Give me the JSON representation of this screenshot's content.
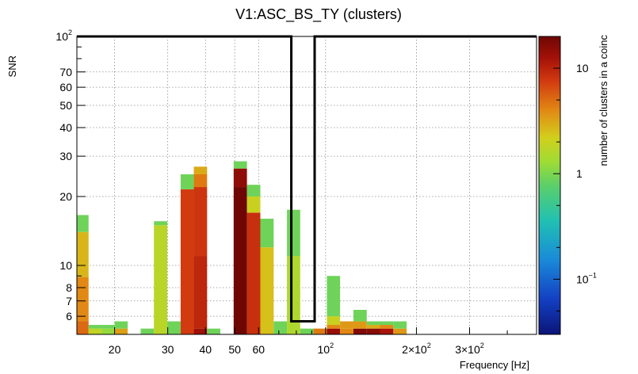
{
  "chart_data": {
    "type": "heatmap",
    "title": "V1:ASC_BS_TY (clusters)",
    "xlabel": "Frequency [Hz]",
    "ylabel": "SNR",
    "zlabel": "number of clusters in a coinc",
    "x_scale": "log",
    "y_scale": "log",
    "z_scale": "log",
    "xlim": [
      15.0,
      500.0
    ],
    "ylim": [
      5.0,
      100.0
    ],
    "zlim": [
      0.03,
      20.0
    ],
    "x_ticks": [
      {
        "value": 20,
        "label": "20"
      },
      {
        "value": 30,
        "label": "30"
      },
      {
        "value": 40,
        "label": "40"
      },
      {
        "value": 50,
        "label": "50"
      },
      {
        "value": 60,
        "label": "60"
      },
      {
        "value": 100,
        "label": "10",
        "exp": "2"
      },
      {
        "value": 200,
        "label": "2×10",
        "exp": "2"
      },
      {
        "value": 300,
        "label": "3×10",
        "exp": "2"
      }
    ],
    "y_ticks": [
      {
        "value": 6,
        "label": "6"
      },
      {
        "value": 7,
        "label": "7"
      },
      {
        "value": 8,
        "label": "8"
      },
      {
        "value": 10,
        "label": "10"
      },
      {
        "value": 20,
        "label": "20"
      },
      {
        "value": 30,
        "label": "30"
      },
      {
        "value": 40,
        "label": "40"
      },
      {
        "value": 50,
        "label": "50"
      },
      {
        "value": 60,
        "label": "60"
      },
      {
        "value": 70,
        "label": "70"
      },
      {
        "value": 100,
        "label": "10",
        "exp": "2"
      }
    ],
    "z_ticks": [
      {
        "value": 0.1,
        "label": "10",
        "exp": "−1"
      },
      {
        "value": 1,
        "label": "1"
      },
      {
        "value": 10,
        "label": "10"
      }
    ],
    "selection_window": {
      "f_min": 77.0,
      "f_max": 92.0,
      "snr_min": 5.7,
      "snr_max": 100.0
    },
    "columns": [
      {
        "f": [
          15.0,
          16.4
        ],
        "stack": [
          [
            5.0,
            5.7,
            5.2
          ],
          [
            5.7,
            8.9,
            4.0
          ],
          [
            8.9,
            14.0,
            2.7
          ],
          [
            14.0,
            16.6,
            0.9
          ]
        ]
      },
      {
        "f": [
          16.4,
          18.1
        ],
        "stack": [
          [
            5.0,
            5.3,
            1.8
          ],
          [
            5.3,
            5.5,
            0.9
          ]
        ]
      },
      {
        "f": [
          18.1,
          20.0
        ],
        "stack": [
          [
            5.0,
            5.3,
            1.2
          ],
          [
            5.3,
            5.5,
            0.9
          ]
        ]
      },
      {
        "f": [
          20.0,
          22.1
        ],
        "stack": [
          [
            5.0,
            5.3,
            3.3
          ],
          [
            5.3,
            5.7,
            0.9
          ]
        ]
      },
      {
        "f": [
          24.4,
          27.0
        ],
        "stack": [
          [
            5.0,
            5.3,
            0.9
          ]
        ]
      },
      {
        "f": [
          27.0,
          29.9
        ],
        "stack": [
          [
            5.0,
            15.0,
            1.7
          ],
          [
            15.0,
            15.6,
            0.9
          ]
        ]
      },
      {
        "f": [
          29.9,
          33.1
        ],
        "stack": [
          [
            5.0,
            5.7,
            0.9
          ]
        ]
      },
      {
        "f": [
          33.1,
          36.6
        ],
        "stack": [
          [
            5.0,
            21.5,
            7.5
          ],
          [
            21.5,
            25.0,
            0.9
          ]
        ]
      },
      {
        "f": [
          36.6,
          40.5
        ],
        "stack": [
          [
            5.0,
            5.3,
            13.0
          ],
          [
            5.3,
            11.0,
            9.5
          ],
          [
            11.0,
            22.0,
            8.0
          ],
          [
            22.0,
            25.0,
            4.5
          ],
          [
            25.0,
            27.0,
            3.0
          ]
        ]
      },
      {
        "f": [
          40.5,
          44.8
        ],
        "stack": [
          [
            5.0,
            5.3,
            0.9
          ]
        ]
      },
      {
        "f": [
          49.6,
          54.9
        ],
        "stack": [
          [
            5.0,
            22.0,
            20.0
          ],
          [
            22.0,
            26.5,
            15.0
          ],
          [
            26.5,
            28.5,
            0.9
          ]
        ]
      },
      {
        "f": [
          54.9,
          60.8
        ],
        "stack": [
          [
            5.0,
            17.0,
            8.5
          ],
          [
            17.0,
            20.0,
            2.0
          ],
          [
            20.0,
            22.5,
            0.9
          ]
        ]
      },
      {
        "f": [
          60.8,
          67.3
        ],
        "stack": [
          [
            5.0,
            12.0,
            2.5
          ],
          [
            12.0,
            16.0,
            0.9
          ]
        ]
      },
      {
        "f": [
          67.3,
          74.5
        ],
        "stack": [
          [
            5.0,
            5.7,
            0.9
          ]
        ]
      },
      {
        "f": [
          74.5,
          82.4
        ],
        "stack": [
          [
            5.0,
            11.0,
            1.5
          ],
          [
            11.0,
            17.5,
            0.9
          ]
        ]
      },
      {
        "f": [
          82.4,
          91.2
        ],
        "stack": [
          [
            5.0,
            5.3,
            0.9
          ]
        ]
      },
      {
        "f": [
          91.2,
          101.0
        ],
        "stack": [
          [
            5.0,
            5.3,
            4.5
          ]
        ]
      },
      {
        "f": [
          101.0,
          111.7
        ],
        "stack": [
          [
            5.0,
            5.3,
            14.0
          ],
          [
            5.3,
            5.5,
            4.0
          ],
          [
            5.5,
            6.0,
            2.0
          ],
          [
            6.0,
            9.0,
            0.9
          ]
        ]
      },
      {
        "f": [
          111.7,
          123.7
        ],
        "stack": [
          [
            5.0,
            5.3,
            4.0
          ],
          [
            5.3,
            5.7,
            3.5
          ]
        ]
      },
      {
        "f": [
          123.7,
          136.9
        ],
        "stack": [
          [
            5.0,
            5.3,
            17.0
          ],
          [
            5.3,
            5.7,
            3.5
          ],
          [
            5.7,
            6.4,
            0.9
          ]
        ]
      },
      {
        "f": [
          136.9,
          151.5
        ],
        "stack": [
          [
            5.0,
            5.3,
            16.0
          ],
          [
            5.3,
            5.5,
            3.0
          ],
          [
            5.5,
            5.7,
            0.9
          ]
        ]
      },
      {
        "f": [
          151.5,
          167.7
        ],
        "stack": [
          [
            5.0,
            5.3,
            12.0
          ],
          [
            5.3,
            5.5,
            4.0
          ],
          [
            5.5,
            5.7,
            0.9
          ]
        ]
      },
      {
        "f": [
          167.7,
          185.6
        ],
        "stack": [
          [
            5.0,
            5.3,
            3.5
          ],
          [
            5.3,
            5.7,
            0.9
          ]
        ]
      }
    ]
  }
}
